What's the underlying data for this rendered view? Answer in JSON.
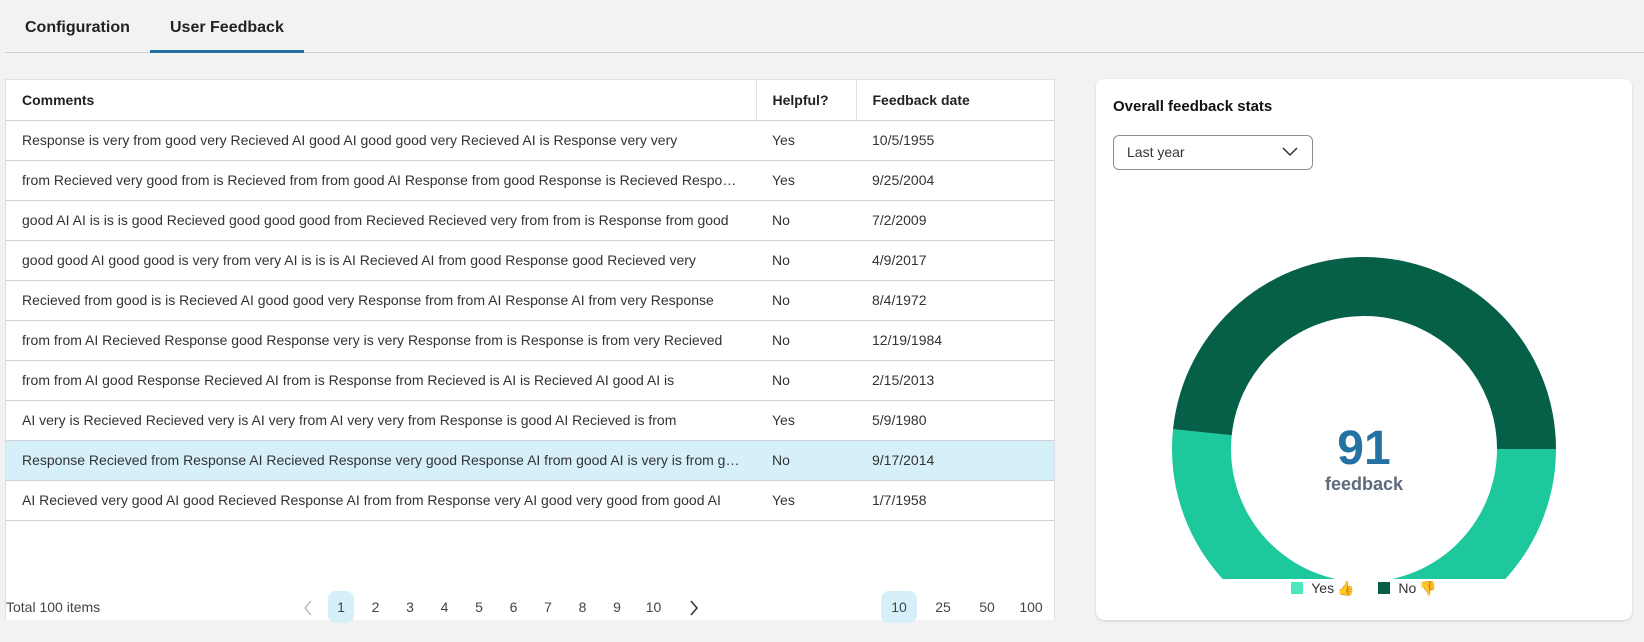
{
  "tabs": [
    {
      "label": "Configuration",
      "active": false
    },
    {
      "label": "User Feedback",
      "active": true
    }
  ],
  "table": {
    "columns": [
      "Comments",
      "Helpful?",
      "Feedback date"
    ],
    "rows": [
      {
        "comment": "Response is very from good very Recieved AI good AI good good very Recieved AI is Response very very",
        "helpful": "Yes",
        "date": "10/5/1955"
      },
      {
        "comment": "from Recieved very good from is Recieved from from good AI Response from good Response is Recieved Response",
        "helpful": "Yes",
        "date": "9/25/2004"
      },
      {
        "comment": "good AI AI is is is good Recieved good good good from Recieved Recieved very from from is Response from good",
        "helpful": "No",
        "date": "7/2/2009"
      },
      {
        "comment": "good good AI good good is very from very AI is is is AI Recieved AI from good Response good Recieved very",
        "helpful": "No",
        "date": "4/9/2017"
      },
      {
        "comment": "Recieved from good is is Recieved AI good good very Response from from AI Response AI from very Response",
        "helpful": "No",
        "date": "8/4/1972"
      },
      {
        "comment": "from from AI Recieved Response good Response very is very Response from is Response is from very Recieved",
        "helpful": "No",
        "date": "12/19/1984"
      },
      {
        "comment": "from from AI good Response Recieved AI from is Response from Recieved is AI is Recieved AI good AI is",
        "helpful": "No",
        "date": "2/15/2013"
      },
      {
        "comment": "AI very is Recieved Recieved very is AI very from AI very very from Response is good AI Recieved is from",
        "helpful": "Yes",
        "date": "5/9/1980"
      },
      {
        "comment": "Response Recieved from Response AI Recieved Response very good Response AI from good AI is very is from good",
        "helpful": "No",
        "date": "9/17/2014",
        "selected": true
      },
      {
        "comment": "AI Recieved very good AI good Recieved Response AI from from Response very AI good very good from good AI",
        "helpful": "Yes",
        "date": "1/7/1958"
      }
    ]
  },
  "pagination": {
    "total_label": "Total 100 items",
    "pages": [
      "1",
      "2",
      "3",
      "4",
      "5",
      "6",
      "7",
      "8",
      "9",
      "10"
    ],
    "current_page": "1",
    "page_sizes": [
      "10",
      "25",
      "50",
      "100"
    ],
    "current_size": "10"
  },
  "stats": {
    "title": "Overall feedback stats",
    "range": "Last year",
    "total": "91",
    "total_label": "feedback",
    "yes_label": "Yes",
    "no_label": "No",
    "yes_count": 47,
    "no_count": 44,
    "colors": {
      "yes": "#1cc89c",
      "yes_legend": "#4de8c0",
      "no": "#066048",
      "total": "#2471a3"
    }
  }
}
